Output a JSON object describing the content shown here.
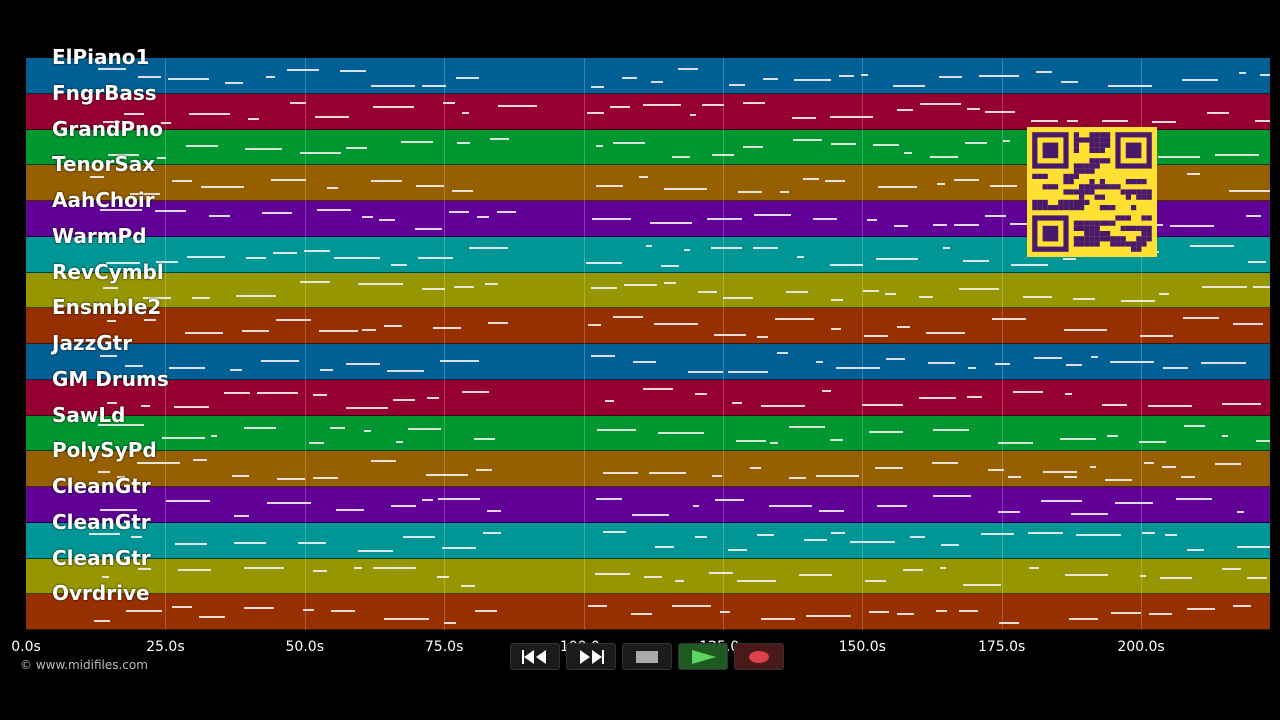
{
  "tracks": [
    {
      "name": "ElPiano1",
      "color": "#006096"
    },
    {
      "name": "FngrBass",
      "color": "#960030"
    },
    {
      "name": "GrandPno",
      "color": "#009630"
    },
    {
      "name": "TenorSax",
      "color": "#966000"
    },
    {
      "name": "AahChoir",
      "color": "#600096"
    },
    {
      "name": "WarmPd",
      "color": "#009696"
    },
    {
      "name": "RevCymbl",
      "color": "#969600"
    },
    {
      "name": "Ensmble2",
      "color": "#963000"
    },
    {
      "name": "JazzGtr",
      "color": "#006096"
    },
    {
      "name": "GM Drums",
      "color": "#960030"
    },
    {
      "name": "SawLd",
      "color": "#009630"
    },
    {
      "name": "PolySyPd",
      "color": "#966000"
    },
    {
      "name": "CleanGtr",
      "color": "#600096"
    },
    {
      "name": "CleanGtr",
      "color": "#009696"
    },
    {
      "name": "CleanGtr",
      "color": "#969600"
    },
    {
      "name": "Ovrdrive",
      "color": "#963000"
    }
  ],
  "timeline": {
    "ticks": [
      "0.0s",
      "25.0s",
      "50.0s",
      "75.0s",
      "100.0s",
      "125.0s",
      "150.0s",
      "175.0s",
      "200.0s"
    ]
  },
  "copyright": "© www.midifiles.com",
  "controls": {
    "rewind_icon": "rewind-icon",
    "forward_icon": "fast-forward-icon",
    "stop_icon": "stop-icon",
    "play_icon": "play-icon",
    "record_icon": "record-icon"
  },
  "qr_color": "#ffe033"
}
